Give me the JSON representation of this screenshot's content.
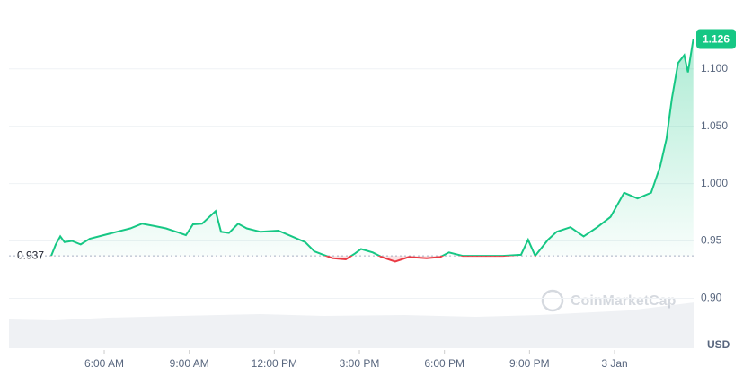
{
  "chart_data": {
    "type": "line",
    "x": [
      4.13,
      4.29,
      4.45,
      4.6,
      4.86,
      5.17,
      5.49,
      5.97,
      6.44,
      6.92,
      7.33,
      7.77,
      8.18,
      8.66,
      8.88,
      9.13,
      9.45,
      9.93,
      10.12,
      10.4,
      10.72,
      11.03,
      11.51,
      12.14,
      12.62,
      13.09,
      13.41,
      13.73,
      14.05,
      14.52,
      14.84,
      15.06,
      15.47,
      15.79,
      16.26,
      16.74,
      17.37,
      17.85,
      18.16,
      18.64,
      20.06,
      20.7,
      20.95,
      21.2,
      21.65,
      21.96,
      22.44,
      22.91,
      23.39,
      23.86,
      24.34,
      24.81,
      25.29,
      25.61,
      25.83,
      26.02,
      26.24,
      26.46,
      26.59,
      26.78
    ],
    "series": [
      {
        "color": "#16c784",
        "values": [
          0.937,
          0.947,
          0.954,
          0.949,
          0.95,
          0.947,
          0.952,
          0.955,
          0.958,
          0.961,
          0.965,
          0.963,
          0.961,
          0.957,
          0.955,
          0.9645,
          0.965,
          0.976,
          0.958,
          0.957,
          0.965,
          0.961,
          0.958,
          0.959,
          0.954,
          0.949,
          0.941,
          0.938,
          0.935,
          0.934,
          0.939,
          0.943,
          0.94,
          0.936,
          0.932,
          0.936,
          0.935,
          0.936,
          0.94,
          0.937,
          0.937,
          0.938,
          0.951,
          0.937,
          0.951,
          0.958,
          0.962,
          0.954,
          0.962,
          0.971,
          0.992,
          0.987,
          0.992,
          1.015,
          1.039,
          1.074,
          1.105,
          1.112,
          1.097,
          1.126
        ]
      }
    ],
    "below_color": "#ea3943",
    "reference": {
      "value": 0.937,
      "label": "0.937"
    },
    "current": {
      "value": 1.126,
      "label": "1.126"
    },
    "xlim": [
      2.64,
      26.82
    ],
    "xticks": [
      {
        "value": 6,
        "label": "6:00 AM"
      },
      {
        "value": 9,
        "label": "9:00 AM"
      },
      {
        "value": 12,
        "label": "12:00 PM"
      },
      {
        "value": 15,
        "label": "3:00 PM"
      },
      {
        "value": 18,
        "label": "6:00 PM"
      },
      {
        "value": 21,
        "label": "9:00 PM"
      },
      {
        "value": 24,
        "label": "3 Jan"
      }
    ],
    "ylim": [
      0.855,
      1.16
    ],
    "yticks": [
      {
        "value": 0.9,
        "label": "0.90"
      },
      0.95,
      {
        "value": 1,
        "label": "1.000"
      },
      {
        "value": 1.05,
        "label": "1.050"
      },
      {
        "value": 1.1,
        "label": "1.100"
      }
    ],
    "y_unit": "USD",
    "watermark": "CoinMarketCap",
    "grid": true
  }
}
